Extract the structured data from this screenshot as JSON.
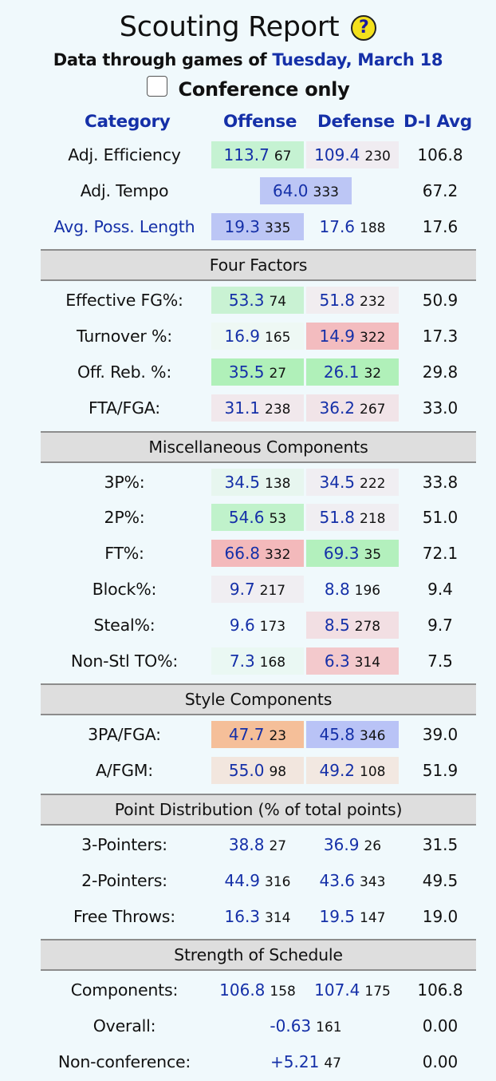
{
  "header": {
    "title": "Scouting Report",
    "help_glyph": "?",
    "subtitle_prefix": "Data through games of ",
    "date": "Tuesday, March 18",
    "conference_only_label": "Conference only"
  },
  "columns": {
    "category": "Category",
    "offense": "Offense",
    "defense": "Defense",
    "avg": "D-I Avg"
  },
  "top_rows": [
    {
      "label": "Adj. Efficiency",
      "off_val": "113.7",
      "off_rank": "67",
      "off_color": "#c5f2d2",
      "def_val": "109.4",
      "def_rank": "230",
      "def_color": "#f0ecf1",
      "avg": "106.8"
    },
    {
      "label": "Adj. Tempo",
      "val": "64.0",
      "rank": "333",
      "color": "#bcc6f5",
      "avg": "67.2"
    },
    {
      "label": "Avg. Poss. Length",
      "off_val": "19.3",
      "off_rank": "335",
      "off_color": "#bcc6f5",
      "def_val": "17.6",
      "def_rank": "188",
      "def_color": "#f0f9fc",
      "avg": "17.6"
    }
  ],
  "four_factors": {
    "title": "Four Factors",
    "rows": [
      {
        "label": "Effective FG%:",
        "off_val": "53.3",
        "off_rank": "74",
        "off_color": "#c9f2d3",
        "def_val": "51.8",
        "def_rank": "232",
        "def_color": "#f1edf0",
        "avg": "50.9"
      },
      {
        "label": "Turnover %:",
        "off_val": "16.9",
        "off_rank": "165",
        "off_color": "#eef8f4",
        "def_val": "14.9",
        "def_rank": "322",
        "def_color": "#f3bcbf",
        "avg": "17.3"
      },
      {
        "label": "Off. Reb. %:",
        "off_val": "35.5",
        "off_rank": "27",
        "off_color": "#b0f0b9",
        "def_val": "26.1",
        "def_rank": "32",
        "def_color": "#b0f0b9",
        "avg": "29.8"
      },
      {
        "label": "FTA/FGA:",
        "off_val": "31.1",
        "off_rank": "238",
        "off_color": "#f1e8ec",
        "def_val": "36.2",
        "def_rank": "267",
        "def_color": "#f1e4e8",
        "avg": "33.0"
      }
    ]
  },
  "misc": {
    "title": "Miscellaneous Components",
    "rows": [
      {
        "label": "3P%:",
        "off_val": "34.5",
        "off_rank": "138",
        "off_color": "#e7f6ef",
        "def_val": "34.5",
        "def_rank": "222",
        "def_color": "#f0eef2",
        "avg": "33.8"
      },
      {
        "label": "2P%:",
        "off_val": "54.6",
        "off_rank": "53",
        "off_color": "#c0f2cb",
        "def_val": "51.8",
        "def_rank": "218",
        "def_color": "#f0eef2",
        "avg": "51.0"
      },
      {
        "label": "FT%:",
        "off_val": "66.8",
        "off_rank": "332",
        "off_color": "#f3b9bb",
        "def_val": "69.3",
        "def_rank": "35",
        "def_color": "#b3f0bd",
        "avg": "72.1"
      },
      {
        "label": "Block%:",
        "off_val": "9.7",
        "off_rank": "217",
        "off_color": "#f0eef2",
        "def_val": "8.8",
        "def_rank": "196",
        "def_color": "#f0f9fc",
        "avg": "9.4"
      },
      {
        "label": "Steal%:",
        "off_val": "9.6",
        "off_rank": "173",
        "off_color": "#f0f9fc",
        "def_val": "8.5",
        "def_rank": "278",
        "def_color": "#f2dfe3",
        "avg": "9.7"
      },
      {
        "label": "Non-Stl TO%:",
        "off_val": "7.3",
        "off_rank": "168",
        "off_color": "#eaf8f3",
        "def_val": "6.3",
        "def_rank": "314",
        "def_color": "#f3c9cc",
        "avg": "7.5"
      }
    ]
  },
  "style": {
    "title": "Style Components",
    "rows": [
      {
        "label": "3PA/FGA:",
        "off_val": "47.7",
        "off_rank": "23",
        "off_color": "#f5bf99",
        "def_val": "45.8",
        "def_rank": "346",
        "def_color": "#b9c3f6",
        "avg": "39.0"
      },
      {
        "label": "A/FGM:",
        "off_val": "55.0",
        "off_rank": "98",
        "off_color": "#f2e6de",
        "def_val": "49.2",
        "def_rank": "108",
        "def_color": "#f2e8e1",
        "avg": "51.9"
      }
    ]
  },
  "point_dist": {
    "title": "Point Distribution (% of total points)",
    "rows": [
      {
        "label": "3-Pointers:",
        "off_val": "38.8",
        "off_rank": "27",
        "def_val": "36.9",
        "def_rank": "26",
        "avg": "31.5"
      },
      {
        "label": "2-Pointers:",
        "off_val": "44.9",
        "off_rank": "316",
        "def_val": "43.6",
        "def_rank": "343",
        "avg": "49.5"
      },
      {
        "label": "Free Throws:",
        "off_val": "16.3",
        "off_rank": "314",
        "def_val": "19.5",
        "def_rank": "147",
        "avg": "19.0"
      }
    ]
  },
  "sos": {
    "title": "Strength of Schedule",
    "components": {
      "label": "Components:",
      "off_val": "106.8",
      "off_rank": "158",
      "def_val": "107.4",
      "def_rank": "175",
      "avg": "106.8"
    },
    "overall": {
      "label": "Overall:",
      "val": "-0.63",
      "rank": "161",
      "avg": "0.00"
    },
    "nonconf": {
      "label": "Non-conference:",
      "val": "+5.21",
      "rank": "47",
      "avg": "0.00"
    }
  }
}
